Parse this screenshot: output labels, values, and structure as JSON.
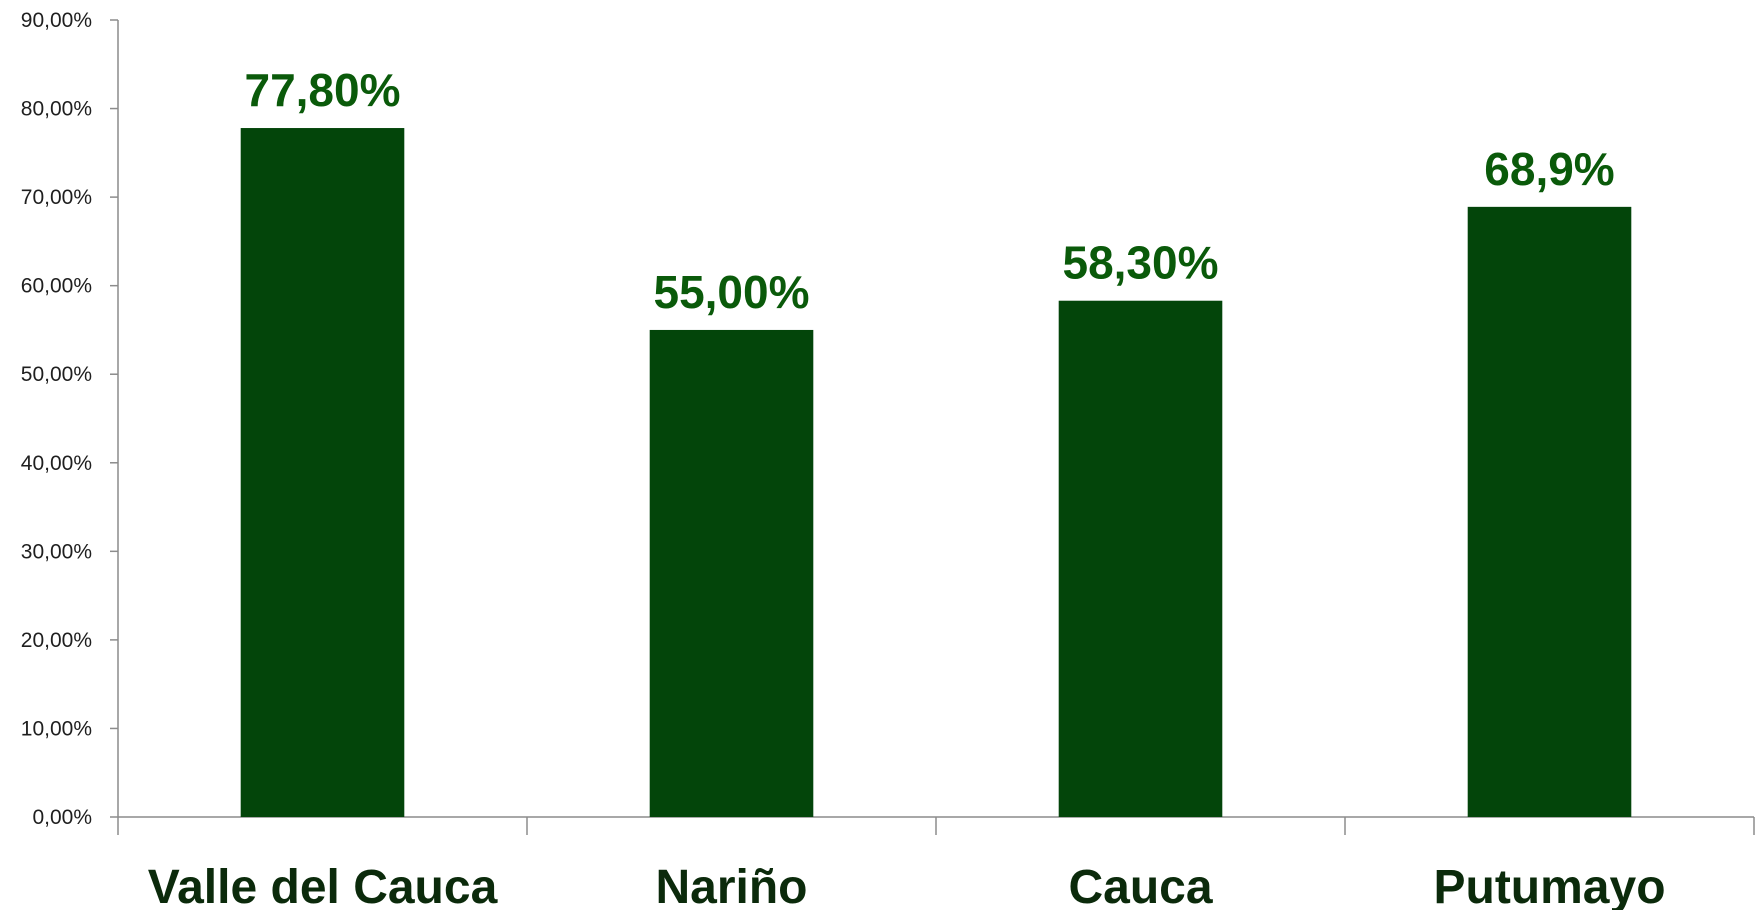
{
  "chart_data": {
    "type": "bar",
    "categories": [
      "Valle del Cauca",
      "Nariño",
      "Cauca",
      "Putumayo"
    ],
    "values": [
      77.8,
      55.0,
      58.3,
      68.9
    ],
    "data_labels": [
      "77,80%",
      "55,00%",
      "58,30%",
      "68,9%"
    ],
    "y_ticks": [
      0,
      10,
      20,
      30,
      40,
      50,
      60,
      70,
      80,
      90
    ],
    "y_tick_labels": [
      "0,00%",
      "10,00%",
      "20,00%",
      "30,00%",
      "40,00%",
      "50,00%",
      "60,00%",
      "70,00%",
      "80,00%",
      "90,00%"
    ],
    "ylim": [
      0,
      90
    ],
    "grid": false,
    "title": "",
    "xlabel": "",
    "ylabel": "",
    "bar_color": "#03450a",
    "label_color": "#0a5a0a"
  }
}
